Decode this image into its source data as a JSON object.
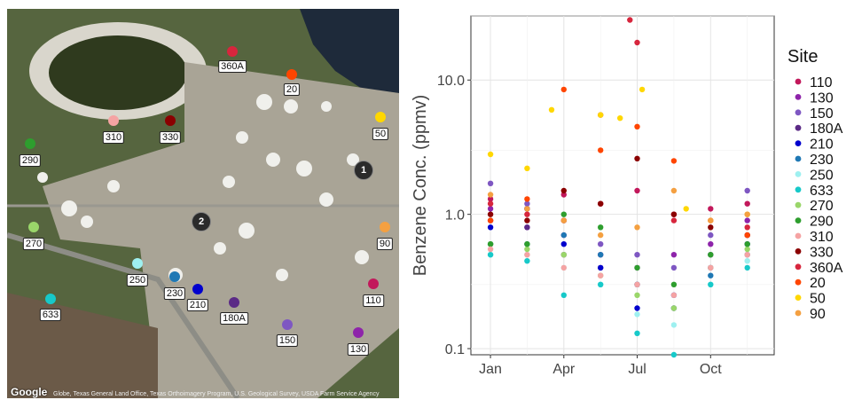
{
  "map": {
    "attribution": "Google",
    "attribution_text": "Globe, Texas General Land Office, Texas Orthoimagery Program, U.S. Geological Survey, USDA Farm Service Agency",
    "markers": [
      "1",
      "2"
    ],
    "sites": [
      {
        "label": "360A",
        "color": "#d7263d"
      },
      {
        "label": "20",
        "color": "#ff4500"
      },
      {
        "label": "310",
        "color": "#f5a3a3"
      },
      {
        "label": "330",
        "color": "#8b0000"
      },
      {
        "label": "50",
        "color": "#ffd700"
      },
      {
        "label": "290",
        "color": "#2e9e2e"
      },
      {
        "label": "270",
        "color": "#9ad66a"
      },
      {
        "label": "90",
        "color": "#f4a041"
      },
      {
        "label": "250",
        "color": "#9ef0f0"
      },
      {
        "label": "230",
        "color": "#1f78b4"
      },
      {
        "label": "210",
        "color": "#0000cd"
      },
      {
        "label": "633",
        "color": "#17c9c9"
      },
      {
        "label": "180A",
        "color": "#5b2a86"
      },
      {
        "label": "110",
        "color": "#c2185b"
      },
      {
        "label": "150",
        "color": "#7e57c2"
      },
      {
        "label": "130",
        "color": "#8e24aa"
      }
    ]
  },
  "chart_data": {
    "type": "scatter",
    "ylabel": "Benzene Conc. (ppmv)",
    "xlabel": "",
    "yscale": "log",
    "ylim": [
      0.09,
      30
    ],
    "yticks": [
      0.1,
      1.0,
      10.0
    ],
    "ytick_labels": [
      "0.1",
      "1.0",
      "10.0"
    ],
    "xticks": [
      "Jan",
      "Apr",
      "Jul",
      "Oct"
    ],
    "x_range_months": [
      0.2,
      12.6
    ],
    "grid": true,
    "legend_title": "Site",
    "legend_position": "right",
    "series": [
      {
        "name": "110",
        "color": "#c2185b",
        "points": [
          [
            1.0,
            1.3
          ],
          [
            2.5,
            1.1
          ],
          [
            4.0,
            1.4
          ],
          [
            5.5,
            1.2
          ],
          [
            7.0,
            1.5
          ],
          [
            8.5,
            1.0
          ],
          [
            10.0,
            1.1
          ],
          [
            11.5,
            1.2
          ]
        ]
      },
      {
        "name": "130",
        "color": "#8e24aa",
        "points": [
          [
            1.0,
            1.1
          ],
          [
            2.5,
            0.8
          ],
          [
            4.0,
            0.7
          ],
          [
            5.5,
            0.5
          ],
          [
            7.0,
            0.4
          ],
          [
            8.5,
            0.5
          ],
          [
            10.0,
            0.6
          ],
          [
            11.5,
            0.9
          ]
        ]
      },
      {
        "name": "150",
        "color": "#7e57c2",
        "points": [
          [
            1.0,
            1.7
          ],
          [
            2.5,
            1.2
          ],
          [
            4.0,
            0.9
          ],
          [
            5.5,
            0.6
          ],
          [
            7.0,
            0.5
          ],
          [
            8.5,
            0.4
          ],
          [
            10.0,
            0.7
          ],
          [
            11.5,
            1.5
          ]
        ]
      },
      {
        "name": "180A",
        "color": "#5b2a86",
        "points": [
          [
            1.0,
            0.9
          ],
          [
            2.5,
            0.8
          ],
          [
            4.0,
            0.5
          ],
          [
            5.5,
            0.4
          ],
          [
            7.0,
            0.3
          ],
          [
            8.5,
            0.2
          ],
          [
            10.0,
            0.5
          ],
          [
            11.5,
            0.7
          ]
        ]
      },
      {
        "name": "210",
        "color": "#0000cd",
        "points": [
          [
            1.0,
            0.8
          ],
          [
            2.5,
            1.1
          ],
          [
            4.0,
            0.6
          ],
          [
            5.5,
            0.4
          ],
          [
            7.0,
            0.2
          ],
          [
            8.5,
            0.25
          ],
          [
            10.0,
            0.4
          ],
          [
            11.5,
            0.6
          ]
        ]
      },
      {
        "name": "230",
        "color": "#1f78b4",
        "points": [
          [
            1.0,
            0.6
          ],
          [
            2.5,
            0.6
          ],
          [
            4.0,
            0.7
          ],
          [
            5.5,
            0.5
          ],
          [
            7.0,
            0.3
          ],
          [
            8.5,
            0.2
          ],
          [
            10.0,
            0.35
          ],
          [
            11.5,
            0.5
          ]
        ]
      },
      {
        "name": "250",
        "color": "#9ef0f0",
        "points": [
          [
            1.0,
            0.5
          ],
          [
            2.5,
            0.5
          ],
          [
            4.0,
            0.4
          ],
          [
            5.5,
            0.3
          ],
          [
            7.0,
            0.18
          ],
          [
            8.5,
            0.15
          ],
          [
            10.0,
            0.3
          ],
          [
            11.5,
            0.45
          ]
        ]
      },
      {
        "name": "633",
        "color": "#17c9c9",
        "points": [
          [
            1.0,
            0.5
          ],
          [
            2.5,
            0.45
          ],
          [
            4.0,
            0.25
          ],
          [
            5.5,
            0.3
          ],
          [
            7.0,
            0.13
          ],
          [
            8.5,
            0.09
          ],
          [
            10.0,
            0.3
          ],
          [
            11.5,
            0.4
          ]
        ]
      },
      {
        "name": "270",
        "color": "#9ad66a",
        "points": [
          [
            1.0,
            0.6
          ],
          [
            2.5,
            0.55
          ],
          [
            4.0,
            0.5
          ],
          [
            5.5,
            0.35
          ],
          [
            7.0,
            0.25
          ],
          [
            8.5,
            0.2
          ],
          [
            10.0,
            0.4
          ],
          [
            11.5,
            0.55
          ]
        ]
      },
      {
        "name": "290",
        "color": "#2e9e2e",
        "points": [
          [
            1.0,
            0.6
          ],
          [
            2.5,
            0.6
          ],
          [
            4.0,
            1.0
          ],
          [
            5.5,
            0.8
          ],
          [
            7.0,
            0.4
          ],
          [
            8.5,
            0.3
          ],
          [
            10.0,
            0.5
          ],
          [
            11.5,
            0.6
          ]
        ]
      },
      {
        "name": "310",
        "color": "#f5a3a3",
        "points": [
          [
            1.0,
            0.55
          ],
          [
            2.5,
            0.5
          ],
          [
            4.0,
            0.4
          ],
          [
            5.5,
            0.35
          ],
          [
            7.0,
            0.3
          ],
          [
            8.5,
            0.25
          ],
          [
            10.0,
            0.4
          ],
          [
            11.5,
            0.5
          ]
        ]
      },
      {
        "name": "330",
        "color": "#8b0000",
        "points": [
          [
            1.0,
            1.0
          ],
          [
            2.5,
            0.9
          ],
          [
            4.0,
            1.5
          ],
          [
            5.5,
            1.2
          ],
          [
            7.0,
            2.6
          ],
          [
            8.5,
            1.0
          ],
          [
            10.0,
            0.8
          ],
          [
            11.5,
            0.7
          ]
        ]
      },
      {
        "name": "360A",
        "color": "#d7263d",
        "points": [
          [
            1.0,
            1.2
          ],
          [
            2.5,
            1.0
          ],
          [
            4.0,
            0.9
          ],
          [
            5.5,
            5.5
          ],
          [
            6.7,
            28.0
          ],
          [
            7.0,
            19.0
          ],
          [
            8.5,
            0.9
          ],
          [
            11.5,
            0.8
          ]
        ]
      },
      {
        "name": "20",
        "color": "#ff4500",
        "points": [
          [
            1.0,
            0.9
          ],
          [
            2.5,
            1.3
          ],
          [
            4.0,
            8.5
          ],
          [
            5.5,
            3.0
          ],
          [
            7.0,
            4.5
          ],
          [
            8.5,
            2.5
          ],
          [
            10.0,
            0.9
          ],
          [
            11.5,
            0.7
          ]
        ]
      },
      {
        "name": "50",
        "color": "#ffd700",
        "points": [
          [
            1.0,
            2.8
          ],
          [
            2.5,
            2.2
          ],
          [
            3.5,
            6.0
          ],
          [
            5.5,
            5.5
          ],
          [
            6.3,
            5.2
          ],
          [
            7.2,
            8.5
          ],
          [
            9.0,
            1.1
          ],
          [
            11.5,
            1.0
          ]
        ]
      },
      {
        "name": "90",
        "color": "#f4a041",
        "points": [
          [
            1.0,
            1.4
          ],
          [
            2.5,
            1.1
          ],
          [
            4.0,
            0.9
          ],
          [
            5.5,
            0.7
          ],
          [
            7.0,
            0.8
          ],
          [
            8.5,
            1.5
          ],
          [
            10.0,
            0.9
          ],
          [
            11.5,
            1.0
          ]
        ]
      }
    ]
  }
}
